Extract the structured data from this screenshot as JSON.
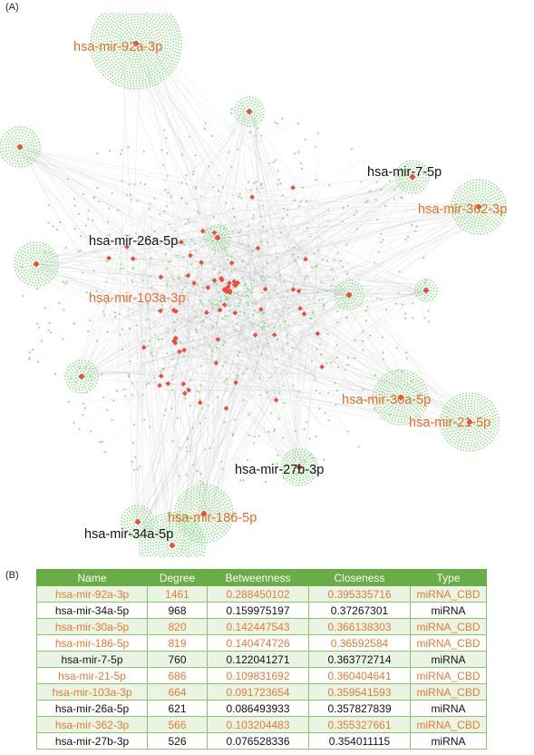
{
  "panel_a_label": "(A)",
  "panel_b_label": "(B)",
  "colors": {
    "mirna_cbd": "#e96a2c",
    "mirna": "#111111",
    "hub_node": "#ef4a3f",
    "gene_node": "#8fe08a",
    "edge": "#bdbdbd",
    "table_header": "#6aac45"
  },
  "network_labels": [
    {
      "text": "hsa-mir-92a-3p",
      "type": "miRNA_CBD"
    },
    {
      "text": "hsa-mir-7-5p",
      "type": "miRNA"
    },
    {
      "text": "hsa-mir-362-3p",
      "type": "miRNA_CBD"
    },
    {
      "text": "hsa-mir-26a-5p",
      "type": "miRNA"
    },
    {
      "text": "hsa-mir-103a-3p",
      "type": "miRNA_CBD"
    },
    {
      "text": "hsa-mir-30a-5p",
      "type": "miRNA_CBD"
    },
    {
      "text": "hsa-mir-21-5p",
      "type": "miRNA_CBD"
    },
    {
      "text": "hsa-mir-27b-3p",
      "type": "miRNA"
    },
    {
      "text": "hsa-mir-186-5p",
      "type": "miRNA_CBD"
    },
    {
      "text": "hsa-mir-34a-5p",
      "type": "miRNA"
    }
  ],
  "table": {
    "headers": [
      "Name",
      "Degree",
      "Betweenness",
      "Closeness",
      "Type"
    ],
    "rows": [
      [
        "hsa-mir-92a-3p",
        "1461",
        "0.288450102",
        "0.395335716",
        "miRNA_CBD"
      ],
      [
        "hsa-mir-34a-5p",
        "968",
        "0.159975197",
        "0.37267301",
        "miRNA"
      ],
      [
        "hsa-mir-30a-5p",
        "820",
        "0.142447543",
        "0.366138303",
        "miRNA_CBD"
      ],
      [
        "hsa-mir-186-5p",
        "819",
        "0.140474726",
        "0.36592584",
        "miRNA_CBD"
      ],
      [
        "hsa-mir-7-5p",
        "760",
        "0.122041271",
        "0.363772714",
        "miRNA"
      ],
      [
        "hsa-mir-21-5p",
        "686",
        "0.109831692",
        "0.360404641",
        "miRNA_CBD"
      ],
      [
        "hsa-mir-103a-3p",
        "664",
        "0.091723654",
        "0.359541593",
        "miRNA_CBD"
      ],
      [
        "hsa-mir-26a-5p",
        "621",
        "0.086493933",
        "0.357827839",
        "miRNA"
      ],
      [
        "hsa-mir-362-3p",
        "566",
        "0.103204483",
        "0.355327661",
        "miRNA_CBD"
      ],
      [
        "hsa-mir-27b-3p",
        "526",
        "0.076528336",
        "0.354011115",
        "miRNA"
      ]
    ]
  }
}
